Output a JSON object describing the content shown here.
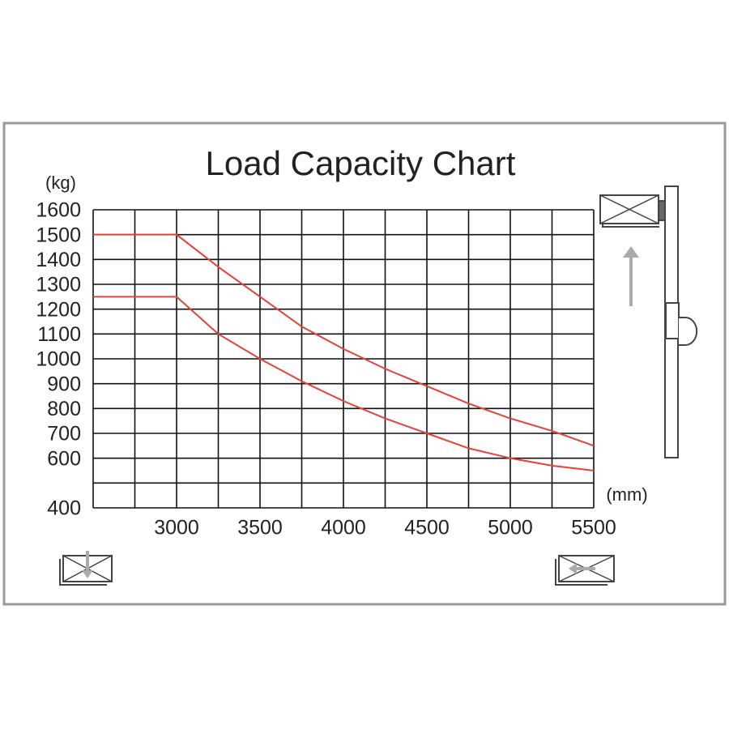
{
  "chart_data": {
    "type": "line",
    "title": "Load Capacity Chart",
    "y_label": "(kg)",
    "x_label": "(mm)",
    "xlim": [
      2500,
      5500
    ],
    "xticks": [
      3000,
      3500,
      4000,
      4500,
      5000,
      5500
    ],
    "xgrid": [
      2500,
      2750,
      3000,
      3250,
      3500,
      3750,
      4000,
      4250,
      4500,
      4750,
      5000,
      5250,
      5500
    ],
    "ylim": [
      400,
      1600
    ],
    "yticks": [
      400,
      600,
      700,
      800,
      900,
      1000,
      1100,
      1200,
      1300,
      1400,
      1500,
      1600
    ],
    "ygrid": [
      400,
      500,
      600,
      700,
      800,
      900,
      1000,
      1100,
      1200,
      1300,
      1400,
      1500,
      1600
    ],
    "x": [
      2500,
      2750,
      3000,
      3250,
      3500,
      3750,
      4000,
      4250,
      4500,
      4750,
      5000,
      5250,
      5500
    ],
    "series": [
      {
        "color": "#e8413a",
        "values": [
          1500,
          1500,
          1500,
          1370,
          1250,
          1130,
          1040,
          960,
          890,
          820,
          760,
          710,
          650
        ]
      },
      {
        "color": "#e8413a",
        "values": [
          1250,
          1250,
          1250,
          1100,
          1000,
          910,
          830,
          760,
          700,
          640,
          600,
          570,
          550
        ]
      }
    ]
  }
}
